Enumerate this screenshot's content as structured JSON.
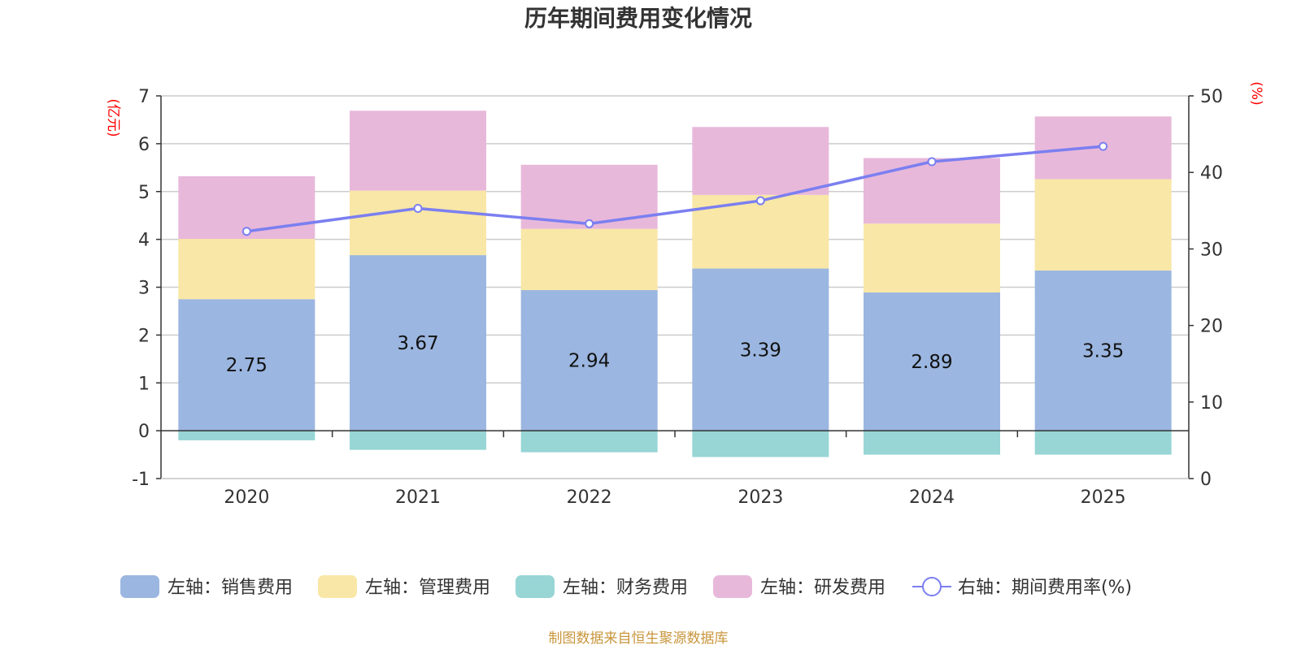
{
  "chart_data": {
    "type": "bar",
    "stacked": true,
    "title": "历年期间费用变化情况",
    "categories": [
      "2020",
      "2021",
      "2022",
      "2023",
      "2024",
      "2025"
    ],
    "left_axis": {
      "unit": "(亿元)",
      "min": -1,
      "max": 7,
      "ticks": [
        -1,
        0,
        1,
        2,
        3,
        4,
        5,
        6,
        7
      ]
    },
    "right_axis": {
      "unit": "(%)",
      "min": 0,
      "max": 50,
      "ticks": [
        0,
        10,
        20,
        30,
        40,
        50
      ]
    },
    "series": [
      {
        "name": "左轴：销售费用",
        "type": "bar",
        "axis": "left",
        "color": "#9bb6e0",
        "values": [
          2.75,
          3.67,
          2.94,
          3.39,
          2.89,
          3.35
        ],
        "show_labels": true
      },
      {
        "name": "左轴：管理费用",
        "type": "bar",
        "axis": "left",
        "color": "#f8e7a6",
        "values": [
          1.26,
          1.35,
          1.28,
          1.54,
          1.44,
          1.91
        ]
      },
      {
        "name": "左轴：财务费用",
        "type": "bar",
        "axis": "left",
        "color": "#98d5d5",
        "values": [
          -0.2,
          -0.4,
          -0.45,
          -0.55,
          -0.5,
          -0.5
        ]
      },
      {
        "name": "左轴：研发费用",
        "type": "bar",
        "axis": "left",
        "color": "#e8b8da",
        "values": [
          1.31,
          1.67,
          1.34,
          1.42,
          1.37,
          1.31
        ]
      },
      {
        "name": "右轴：期间费用率(%)",
        "type": "line",
        "axis": "right",
        "color": "#7b7ff0",
        "values": [
          32.3,
          35.3,
          33.3,
          36.3,
          41.4,
          43.4
        ]
      }
    ],
    "legend_position": "bottom-center",
    "grid": true
  },
  "footer": {
    "source": "制图数据来自恒生聚源数据库"
  }
}
